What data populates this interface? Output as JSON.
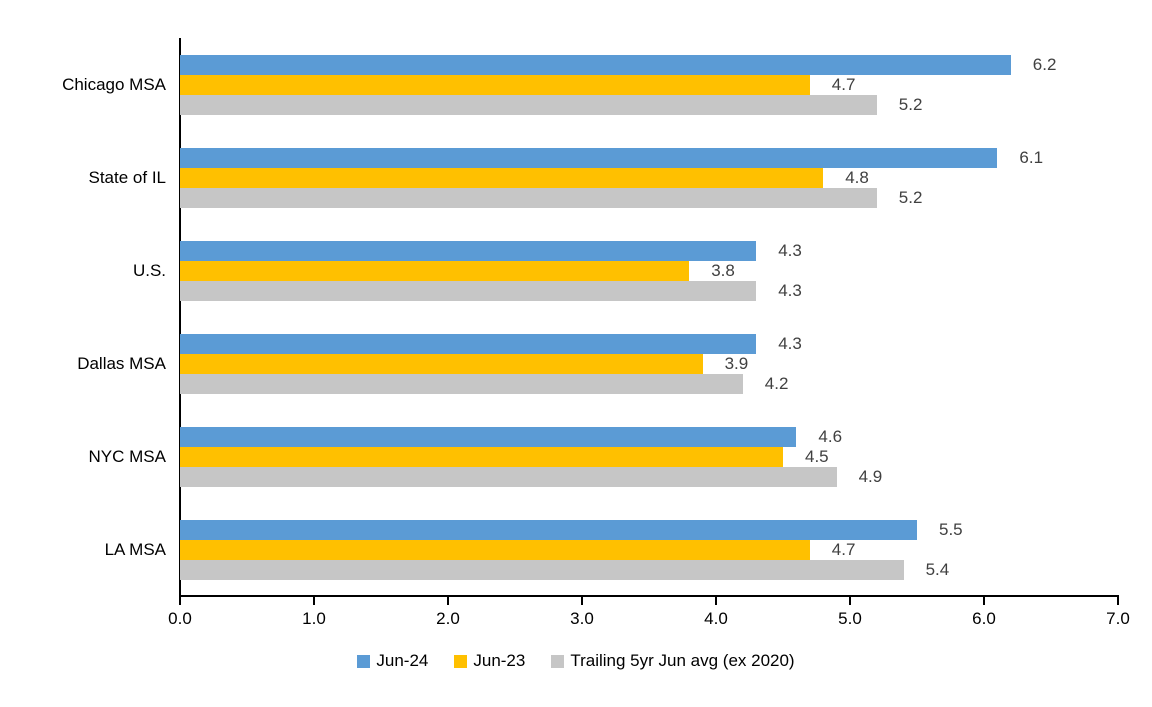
{
  "chart_data": {
    "type": "bar",
    "orientation": "horizontal",
    "title": "",
    "xlabel": "",
    "ylabel": "",
    "categories": [
      "Chicago MSA",
      "State of IL",
      "U.S.",
      "Dallas MSA",
      "NYC MSA",
      "LA MSA"
    ],
    "series": [
      {
        "name": "Jun-24",
        "color": "#5B9BD5",
        "values": [
          6.2,
          6.1,
          4.3,
          4.3,
          4.6,
          5.5
        ]
      },
      {
        "name": "Jun-23",
        "color": "#FFC000",
        "values": [
          4.7,
          4.8,
          3.8,
          3.9,
          4.5,
          4.7
        ]
      },
      {
        "name": "Trailing 5yr Jun avg (ex 2020)",
        "color": "#C6C6C6",
        "values": [
          5.2,
          5.2,
          4.3,
          4.2,
          4.9,
          5.4
        ]
      }
    ],
    "xlim": [
      0,
      7
    ],
    "x_ticks": [
      "0.0",
      "1.0",
      "2.0",
      "3.0",
      "4.0",
      "5.0",
      "6.0",
      "7.0"
    ],
    "value_labels": true,
    "value_label_color": "#404040",
    "axis_color": "#000000",
    "grid": false,
    "legend_position": "bottom"
  }
}
